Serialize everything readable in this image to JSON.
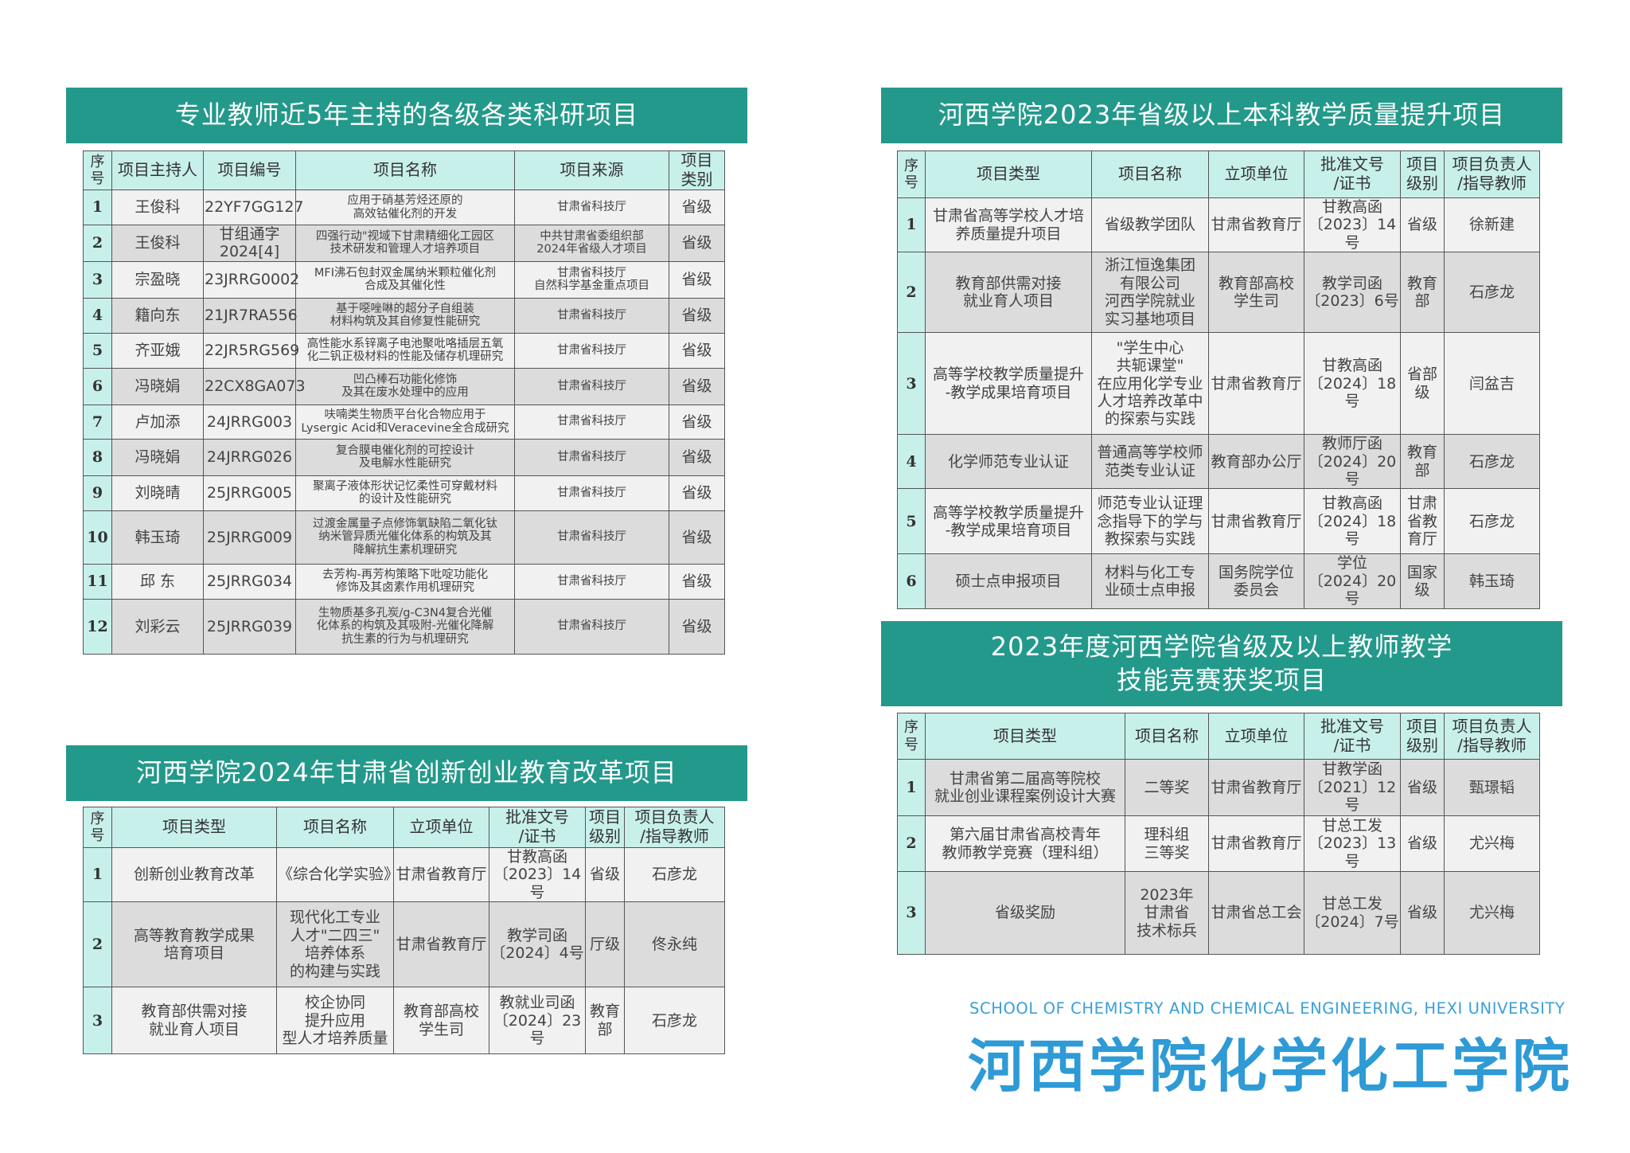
{
  "colors": {
    "banner": "#23998b",
    "header": "#c8f0eb",
    "row_light": "#f1f1f1",
    "row_dark": "#dcdcdc",
    "brand": "#2e9ad6"
  },
  "research": {
    "title": "专业教师近5年主持的各级各类科研项目",
    "headers": [
      "序\n号",
      "项目主持人",
      "项目编号",
      "项目名称",
      "项目来源",
      "项目\n类别"
    ],
    "rows": [
      [
        "1",
        "王俊科",
        "22YF7GG127",
        "应用于硝基芳烃还原的\n高效钴催化剂的开发",
        "甘肃省科技厅",
        "省级"
      ],
      [
        "2",
        "王俊科",
        "甘组通字\n2024[4]",
        "四强行动\"视域下甘肃精细化工园区\n技术研发和管理人才培养项目",
        "中共甘肃省委组织部\n2024年省级人才项目",
        "省级"
      ],
      [
        "3",
        "宗盈晓",
        "23JRRG0002",
        "MFI沸石包封双金属纳米颗粒催化剂\n合成及其催化性",
        "甘肃省科技厅\n自然科学基金重点项目",
        "省级"
      ],
      [
        "4",
        "籍向东",
        "21JR7RA556",
        "基于噁唑啉的超分子自组装\n材料构筑及其自修复性能研究",
        "甘肃省科技厅",
        "省级"
      ],
      [
        "5",
        "齐亚娥",
        "22JR5RG569",
        "高性能水系锌离子电池聚吡咯插层五氧\n化二钒正极材料的性能及储存机理研究",
        "甘肃省科技厅",
        "省级"
      ],
      [
        "6",
        "冯晓娟",
        "22CX8GA073",
        "凹凸棒石功能化修饰\n及其在废水处理中的应用",
        "甘肃省科技厅",
        "省级"
      ],
      [
        "7",
        "卢加添",
        "24JRRG003",
        "呋喃类生物质平台化合物应用于\nLysergic Acid和Veracevine全合成研究",
        "甘肃省科技厅",
        "省级"
      ],
      [
        "8",
        "冯晓娟",
        "24JRRG026",
        "复合膜电催化剂的可控设计\n及电解水性能研究",
        "甘肃省科技厅",
        "省级"
      ],
      [
        "9",
        "刘晓晴",
        "25JRRG005",
        "聚离子液体形状记忆柔性可穿戴材料\n的设计及性能研究",
        "甘肃省科技厅",
        "省级"
      ],
      [
        "10",
        "韩玉琦",
        "25JRRG009",
        "过渡金属量子点修饰氧缺陷二氧化钛\n纳米管异质光催化体系的构筑及其\n降解抗生素机理研究",
        "甘肃省科技厅",
        "省级"
      ],
      [
        "11",
        "邱  东",
        "25JRRG034",
        "去芳构-再芳构策略下吡啶功能化\n修饰及其卤素作用机理研究",
        "甘肃省科技厅",
        "省级"
      ],
      [
        "12",
        "刘彩云",
        "25JRRG039",
        "生物质基多孔炭/g-C3N4复合光催\n化体系的构筑及其吸附-光催化降解\n抗生素的行为与机理研究",
        "甘肃省科技厅",
        "省级"
      ]
    ]
  },
  "innovation": {
    "title": "河西学院2024年甘肃省创新创业教育改革项目",
    "headers": [
      "序\n号",
      "项目类型",
      "项目名称",
      "立项单位",
      "批准文号\n/证书",
      "项目\n级别",
      "项目负责人\n/指导教师"
    ],
    "rows": [
      [
        "1",
        "创新创业教育改革",
        "《综合化学实验》",
        "甘肃省教育厅",
        "甘教高函\n〔2023〕14 号",
        "省级",
        "石彦龙"
      ],
      [
        "2",
        "高等教育教学成果\n培育项目",
        "现代化工专业\n人才\"二四三\"\n培养体系\n的构建与实践",
        "甘肃省教育厅",
        "教学司函\n〔2024〕4号",
        "厅级",
        "佟永纯"
      ],
      [
        "3",
        "教育部供需对接\n就业育人项目",
        "校企协同\n提升应用\n型人才培养质量",
        "教育部高校\n学生司",
        "教就业司函\n〔2024〕23号",
        "教育\n部",
        "石彦龙"
      ]
    ]
  },
  "quality": {
    "title": "河西学院2023年省级以上本科教学质量提升项目",
    "headers": [
      "序\n号",
      "项目类型",
      "项目名称",
      "立项单位",
      "批准文号\n/证书",
      "项目\n级别",
      "项目负责人\n/指导教师"
    ],
    "rows": [
      [
        "1",
        "甘肃省高等学校人才培\n养质量提升项目",
        "省级教学团队",
        "甘肃省教育厅",
        "甘教高函\n〔2023〕14 号",
        "省级",
        "徐新建"
      ],
      [
        "2",
        "教育部供需对接\n就业育人项目",
        "浙江恒逸集团\n有限公司\n河西学院就业\n实习基地项目",
        "教育部高校\n学生司",
        "教学司函\n〔2023〕6号",
        "教育\n部",
        "石彦龙"
      ],
      [
        "3",
        "高等学校教学质量提升\n-教学成果培育项目",
        "\"学生中心\n共轭课堂\"\n在应用化学专业\n人才培养改革中\n的探索与实践",
        "甘肃省教育厅",
        "甘教高函\n〔2024〕18 号",
        "省部\n级",
        "闫盆吉"
      ],
      [
        "4",
        "化学师范专业认证",
        "普通高等学校师\n范类专业认证",
        "教育部办公厅",
        "教师厅函\n〔2024〕20号",
        "教育\n部",
        "石彦龙"
      ],
      [
        "5",
        "高等学校教学质量提升\n-教学成果培育项目",
        "师范专业认证理\n念指导下的学与\n教探索与实践",
        "甘肃省教育厅",
        "甘教高函\n〔2024〕18 号",
        "甘肃\n省教\n育厅",
        "石彦龙"
      ],
      [
        "6",
        "硕士点申报项目",
        "材料与化工专\n业硕士点申报",
        "国务院学位\n委员会",
        "学位\n〔2024〕20号",
        "国家\n级",
        "韩玉琦"
      ]
    ]
  },
  "competition": {
    "title": "2023年度河西学院省级及以上教师教学\n技能竞赛获奖项目",
    "headers": [
      "序\n号",
      "项目类型",
      "项目名称",
      "立项单位",
      "批准文号\n/证书",
      "项目\n级别",
      "项目负责人\n/指导教师"
    ],
    "rows": [
      [
        "1",
        "甘肃省第二届高等院校\n就业创业课程案例设计大赛",
        "二等奖",
        "甘肃省教育厅",
        "甘教学函\n〔2021〕12号",
        "省级",
        "甄璟韬"
      ],
      [
        "2",
        "第六届甘肃省高校青年\n教师教学竞赛（理科组）",
        "理科组\n三等奖",
        "甘肃省教育厅",
        "甘总工发\n〔2023〕13号",
        "省级",
        "尤兴梅"
      ],
      [
        "3",
        "省级奖励",
        "2023年\n甘肃省\n技术标兵",
        "甘肃省总工会",
        "甘总工发\n〔2024〕7号",
        "省级",
        "尤兴梅"
      ]
    ]
  },
  "footer": {
    "english": "SCHOOL OF CHEMISTRY AND CHEMICAL ENGINEERING, HEXI UNIVERSITY",
    "chinese": "河西学院化学化工学院"
  }
}
